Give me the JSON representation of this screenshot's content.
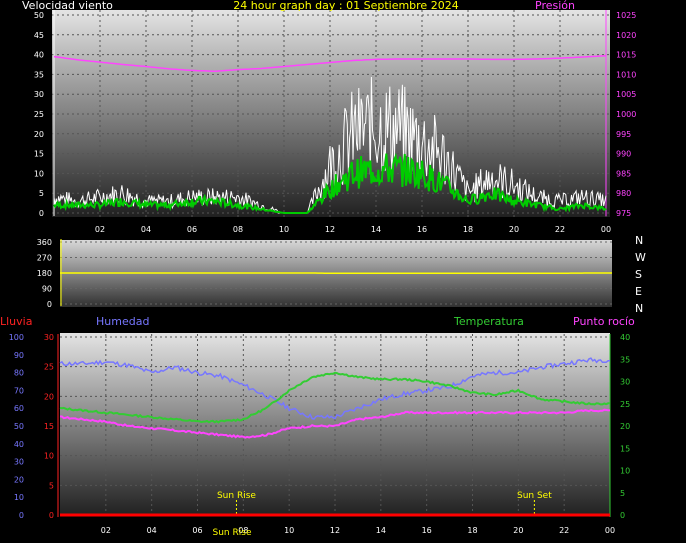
{
  "title": "24 hour graph day : 01 Septiembre 2024",
  "colors": {
    "wind_gust": "#ffffff",
    "wind_avg": "#00cc00",
    "pressure": "#ff44ff",
    "direction": "#ffff00",
    "rain": "#ff0000",
    "humidity": "#7777ff",
    "temperature": "#33cc33",
    "dewpoint": "#ff44ff",
    "sun_marker": "#ffff00"
  },
  "chart_data": [
    {
      "type": "line",
      "name": "wind-pressure",
      "ylabel_left": "Velocidad viento",
      "ylabel_right": "Presión",
      "ylim_left": [
        0,
        50
      ],
      "ylim_right": [
        975,
        1025
      ],
      "yticks_left": [
        "0",
        "5",
        "10",
        "15",
        "20",
        "25",
        "30",
        "35",
        "40",
        "45",
        "50"
      ],
      "yticks_right": [
        "975",
        "980",
        "985",
        "990",
        "995",
        "1000",
        "1005",
        "1010",
        "1015",
        "1020",
        "1025"
      ],
      "xticks": [
        "02",
        "04",
        "06",
        "08",
        "10",
        "12",
        "14",
        "16",
        "18",
        "20",
        "22",
        "00"
      ],
      "x_hours": [
        0,
        1,
        2,
        3,
        4,
        5,
        6,
        7,
        8,
        9,
        10,
        11,
        12,
        13,
        14,
        15,
        16,
        17,
        18,
        19,
        20,
        21,
        22,
        23,
        24
      ],
      "series": [
        {
          "name": "gust",
          "values": [
            4,
            3,
            4,
            5,
            3,
            3,
            4,
            4,
            4,
            2,
            0,
            0,
            12,
            20,
            22,
            21,
            18,
            14,
            5,
            9,
            7,
            4,
            3,
            4,
            3
          ]
        },
        {
          "name": "average",
          "values": [
            2,
            2,
            2,
            3,
            2,
            2,
            3,
            3,
            2,
            1,
            0,
            0,
            6,
            10,
            11,
            11,
            10,
            7,
            3,
            5,
            3,
            2,
            1,
            2,
            1
          ]
        },
        {
          "name": "pressure",
          "values": [
            1014.5,
            1013.7,
            1013.1,
            1012.5,
            1012,
            1011.4,
            1011,
            1010.8,
            1011.2,
            1011.5,
            1012,
            1012.5,
            1013,
            1013.5,
            1013.8,
            1013.9,
            1013.9,
            1013.9,
            1013.9,
            1013.8,
            1013.8,
            1013.9,
            1014.1,
            1014.4,
            1014.7
          ]
        }
      ]
    },
    {
      "type": "line",
      "name": "wind-direction",
      "ylim": [
        0,
        360
      ],
      "yticks": [
        "0",
        "90",
        "180",
        "270",
        "360"
      ],
      "legend_right": [
        "N",
        "W",
        "S",
        "E",
        "N"
      ],
      "series": [
        {
          "name": "direction",
          "values": [
            180,
            180,
            180,
            180,
            180,
            180,
            180,
            180,
            180,
            180,
            180,
            180,
            178,
            178,
            178,
            178,
            178,
            178,
            178,
            178,
            178,
            178,
            179,
            180,
            180
          ]
        }
      ]
    },
    {
      "type": "line",
      "name": "temp-humidity",
      "labels": {
        "rain": "Lluvia",
        "humidity": "Humedad",
        "temperature": "Temperatura",
        "dewpoint": "Punto rocío"
      },
      "ylim_humidity": [
        0,
        100
      ],
      "ylim_rain": [
        0,
        30
      ],
      "ylim_temp": [
        0,
        40
      ],
      "yticks_humidity": [
        "0",
        "10",
        "20",
        "30",
        "40",
        "50",
        "60",
        "70",
        "80",
        "90",
        "100"
      ],
      "yticks_rain": [
        "0",
        "5",
        "10",
        "15",
        "20",
        "25",
        "30"
      ],
      "yticks_temp": [
        "0",
        "5",
        "10",
        "15",
        "20",
        "25",
        "30",
        "35",
        "40"
      ],
      "xticks": [
        "02",
        "04",
        "06",
        "08",
        "10",
        "12",
        "14",
        "16",
        "18",
        "20",
        "22",
        "00"
      ],
      "annotations": [
        {
          "text": "Sun Rise",
          "hour": 7.7
        },
        {
          "text": "Sun Set",
          "hour": 20.7
        }
      ],
      "bottom_label": "Sun Rise",
      "series": [
        {
          "name": "humidity",
          "values": [
            85,
            85,
            86,
            84,
            80,
            83,
            80,
            78,
            73,
            67,
            60,
            55,
            55,
            60,
            65,
            68,
            70,
            72,
            78,
            80,
            80,
            83,
            85,
            87,
            87
          ]
        },
        {
          "name": "temperature",
          "values": [
            24,
            23.5,
            23,
            22.5,
            22,
            21.5,
            21,
            21,
            21.5,
            24,
            28,
            31,
            32,
            31,
            30.5,
            30.5,
            30,
            29,
            27.5,
            27,
            28,
            26,
            25.5,
            25,
            25
          ]
        },
        {
          "name": "dewpoint",
          "values": [
            22,
            21.5,
            21,
            20,
            19.5,
            19,
            18.5,
            18,
            17.5,
            18,
            19.5,
            20,
            20,
            21.5,
            22,
            23,
            23,
            23,
            23,
            23,
            23,
            23,
            23,
            23.5,
            23.5
          ]
        },
        {
          "name": "rain",
          "values": [
            0,
            0,
            0,
            0,
            0,
            0,
            0,
            0,
            0,
            0,
            0,
            0,
            0,
            0,
            0,
            0,
            0,
            0,
            0,
            0,
            0,
            0,
            0,
            0,
            0
          ]
        }
      ]
    }
  ]
}
